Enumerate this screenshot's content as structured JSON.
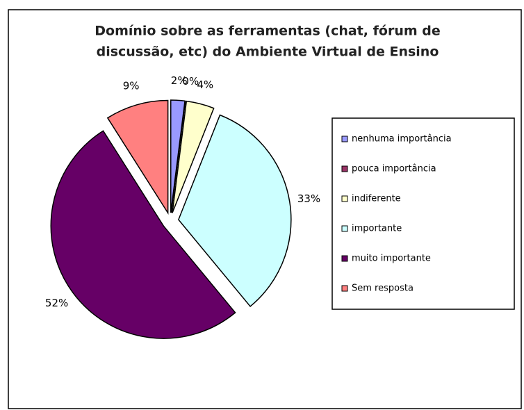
{
  "chart_data": {
    "type": "pie",
    "title": [
      "Domínio sobre as ferramentas (chat, fórum de",
      "discussão, etc) do Ambiente Virtual de Ensino"
    ],
    "categories": [
      "nenhuma importância",
      "pouca importância",
      "indiferente",
      "importante",
      "muito importante",
      "Sem resposta"
    ],
    "values": [
      2,
      0,
      4,
      33,
      52,
      9
    ],
    "value_labels": [
      "2%",
      "0%",
      "4%",
      "33%",
      "52%",
      "9%"
    ],
    "colors": [
      "#9999ff",
      "#993366",
      "#ffffcc",
      "#ccffff",
      "#660066",
      "#ff8080"
    ],
    "legend": "right"
  }
}
